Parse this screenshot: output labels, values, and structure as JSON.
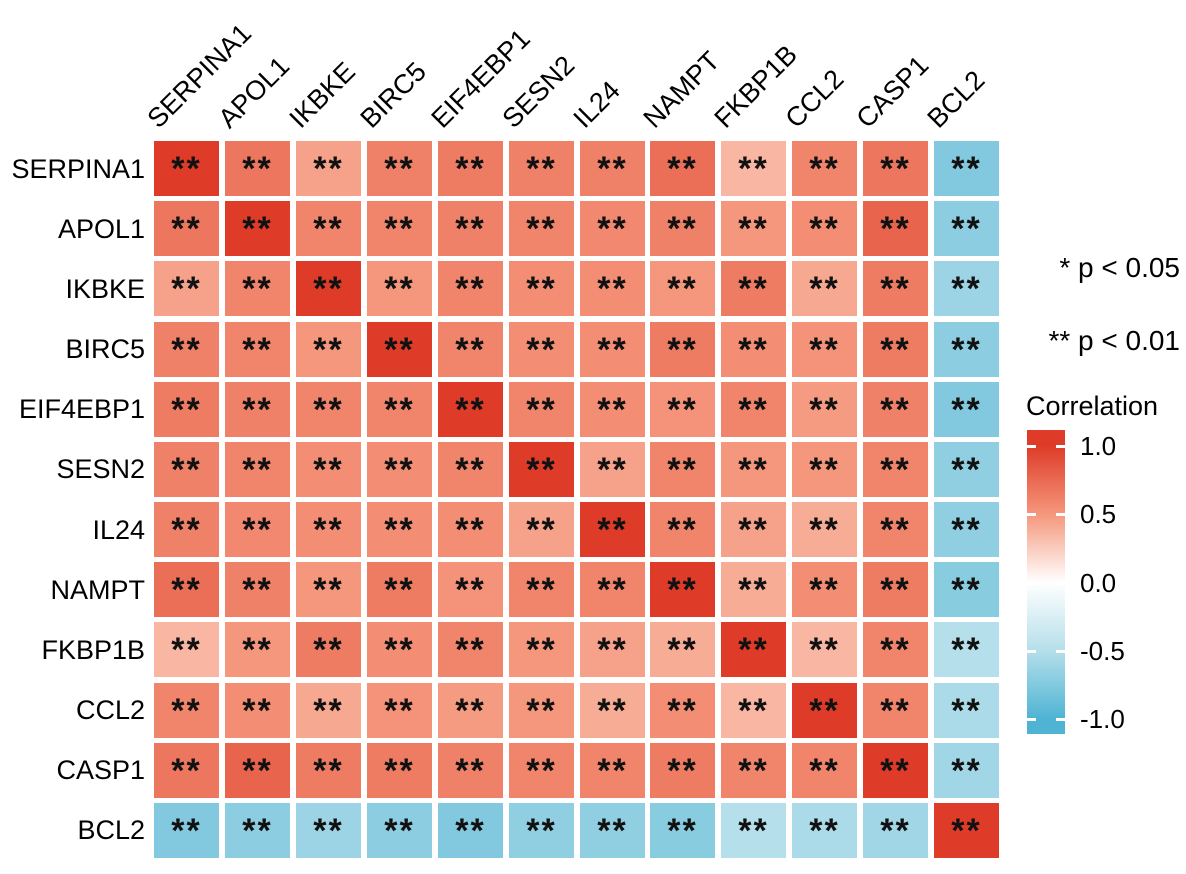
{
  "legend": {
    "sig_note_1": "* p < 0.05",
    "sig_note_2": "** p < 0.01",
    "colorbar_title": "Correlation",
    "colorbar_ticks": [
      "1.0",
      "0.5",
      "0.0",
      "-0.5",
      "-1.0"
    ],
    "colorbar_tick_values": [
      1.0,
      0.5,
      0.0,
      -0.5,
      -1.0
    ]
  },
  "chart_data": {
    "type": "heatmap",
    "title": "",
    "categories": [
      "SERPINA1",
      "APOL1",
      "IKBKE",
      "BIRC5",
      "EIF4EBP1",
      "SESN2",
      "IL24",
      "NAMPT",
      "FKBP1B",
      "CCL2",
      "CASP1",
      "BCL2"
    ],
    "matrix": [
      [
        1.0,
        0.68,
        0.45,
        0.62,
        0.65,
        0.62,
        0.62,
        0.72,
        0.35,
        0.6,
        0.68,
        -0.75
      ],
      [
        0.68,
        1.0,
        0.6,
        0.6,
        0.62,
        0.6,
        0.58,
        0.62,
        0.5,
        0.55,
        0.78,
        -0.7
      ],
      [
        0.45,
        0.6,
        1.0,
        0.5,
        0.6,
        0.55,
        0.55,
        0.5,
        0.65,
        0.42,
        0.65,
        -0.62
      ],
      [
        0.62,
        0.6,
        0.5,
        1.0,
        0.6,
        0.55,
        0.55,
        0.65,
        0.55,
        0.52,
        0.65,
        -0.7
      ],
      [
        0.65,
        0.62,
        0.6,
        0.6,
        1.0,
        0.6,
        0.55,
        0.52,
        0.6,
        0.48,
        0.62,
        -0.75
      ],
      [
        0.62,
        0.6,
        0.55,
        0.55,
        0.6,
        1.0,
        0.45,
        0.6,
        0.5,
        0.5,
        0.6,
        -0.68
      ],
      [
        0.62,
        0.58,
        0.55,
        0.55,
        0.55,
        0.45,
        1.0,
        0.6,
        0.45,
        0.4,
        0.6,
        -0.68
      ],
      [
        0.72,
        0.62,
        0.5,
        0.65,
        0.52,
        0.6,
        0.6,
        1.0,
        0.4,
        0.55,
        0.65,
        -0.72
      ],
      [
        0.35,
        0.5,
        0.65,
        0.55,
        0.6,
        0.5,
        0.45,
        0.4,
        1.0,
        0.35,
        0.6,
        -0.5
      ],
      [
        0.6,
        0.55,
        0.42,
        0.52,
        0.48,
        0.5,
        0.4,
        0.55,
        0.35,
        1.0,
        0.6,
        -0.55
      ],
      [
        0.68,
        0.78,
        0.65,
        0.65,
        0.62,
        0.6,
        0.6,
        0.65,
        0.6,
        0.6,
        1.0,
        -0.6
      ],
      [
        -0.75,
        -0.7,
        -0.62,
        -0.7,
        -0.75,
        -0.68,
        -0.68,
        -0.72,
        -0.5,
        -0.55,
        -0.6,
        1.0
      ]
    ],
    "cell_significance_all": "**",
    "colorscale": {
      "max_color": "#de3c28",
      "mid_high_color": "#f5977c",
      "mid_color": "#ffffff",
      "mid_low_color": "#b5dfea",
      "min_color": "#4fb3d4",
      "domain": [
        -1,
        1
      ]
    },
    "legend_position": "right",
    "grid": false
  }
}
